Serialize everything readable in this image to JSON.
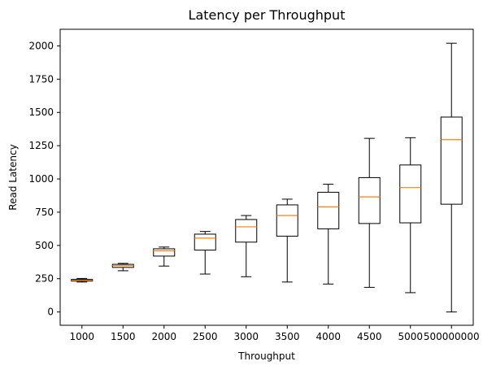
{
  "chart_data": {
    "type": "box",
    "title": "Latency per Throughput",
    "xlabel": "Throughput",
    "ylabel": "Read Latency",
    "ylim": [
      -100,
      2125
    ],
    "yticks": [
      0,
      250,
      500,
      750,
      1000,
      1250,
      1500,
      1750,
      2000
    ],
    "grid": false,
    "categories": [
      "1000",
      "1500",
      "2000",
      "2500",
      "3000",
      "3500",
      "4000",
      "4500",
      "5000",
      "500000000"
    ],
    "boxes": [
      {
        "category": "1000",
        "whisker_low": 225,
        "q1": 232,
        "median": 238,
        "q3": 245,
        "whisker_high": 252
      },
      {
        "category": "1500",
        "whisker_low": 310,
        "q1": 335,
        "median": 348,
        "q3": 358,
        "whisker_high": 365
      },
      {
        "category": "2000",
        "whisker_low": 345,
        "q1": 420,
        "median": 460,
        "q3": 475,
        "whisker_high": 488
      },
      {
        "category": "2500",
        "whisker_low": 285,
        "q1": 465,
        "median": 555,
        "q3": 585,
        "whisker_high": 605
      },
      {
        "category": "3000",
        "whisker_low": 265,
        "q1": 525,
        "median": 640,
        "q3": 695,
        "whisker_high": 725
      },
      {
        "category": "3500",
        "whisker_low": 225,
        "q1": 570,
        "median": 725,
        "q3": 805,
        "whisker_high": 848
      },
      {
        "category": "4000",
        "whisker_low": 210,
        "q1": 625,
        "median": 790,
        "q3": 900,
        "whisker_high": 960
      },
      {
        "category": "4500",
        "whisker_low": 185,
        "q1": 665,
        "median": 865,
        "q3": 1010,
        "whisker_high": 1305
      },
      {
        "category": "5000",
        "whisker_low": 145,
        "q1": 670,
        "median": 935,
        "q3": 1105,
        "whisker_high": 1310
      },
      {
        "category": "500000000",
        "whisker_low": 0,
        "q1": 810,
        "median": 1295,
        "q3": 1465,
        "whisker_high": 2020
      }
    ],
    "colors": {
      "box": "#000000",
      "median": "#ff7f0e",
      "axes": "#000000",
      "background": "#ffffff"
    }
  }
}
